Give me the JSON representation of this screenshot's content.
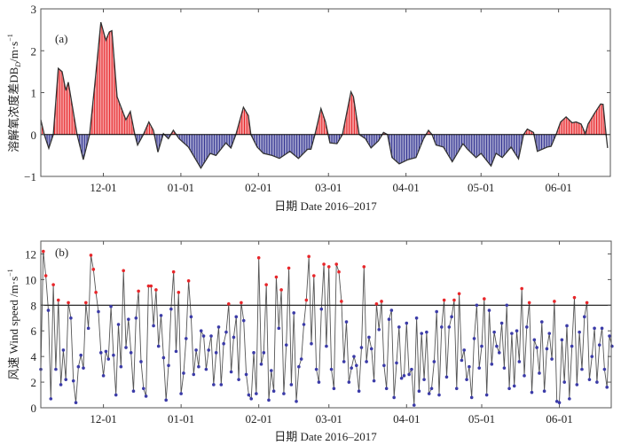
{
  "chart_data": [
    {
      "type": "bar",
      "panel_label": "(a)",
      "title": "",
      "ylabel": {
        "main": "溶解氧浓度差DB",
        "sub": "D",
        "unit": "/m·s",
        "sup": "−1"
      },
      "xlabel": "日期 Date 2016–2017",
      "x_units": "days since 2016-11-06",
      "xlim": [
        0,
        227.7
      ],
      "ylim": [
        -1,
        3
      ],
      "yticks": [
        {
          "v": 3,
          "label": "3"
        },
        {
          "v": 2,
          "label": "2"
        },
        {
          "v": 1,
          "label": "1"
        },
        {
          "v": 0,
          "label": "0"
        },
        {
          "v": -1,
          "label": "−1"
        }
      ],
      "xticks": [
        {
          "day": 25,
          "label": "12-01"
        },
        {
          "day": 56,
          "label": "01-01"
        },
        {
          "day": 87,
          "label": "02-01"
        },
        {
          "day": 115,
          "label": "03-01"
        },
        {
          "day": 146,
          "label": "04-01"
        },
        {
          "day": 176,
          "label": "05-01"
        },
        {
          "day": 207,
          "label": "06-01"
        }
      ],
      "colors": {
        "positive": "#e8262a",
        "negative": "#2e2f8f",
        "line": "#333333"
      },
      "points": [
        [
          0,
          0.35
        ],
        [
          1.4,
          0
        ],
        [
          3.2,
          -0.33
        ],
        [
          5,
          0
        ],
        [
          7,
          1.58
        ],
        [
          8.5,
          1.5
        ],
        [
          10,
          1.05
        ],
        [
          11,
          1.25
        ],
        [
          14.5,
          0
        ],
        [
          17,
          -0.6
        ],
        [
          19.5,
          0
        ],
        [
          21.6,
          1.2
        ],
        [
          24,
          2.68
        ],
        [
          26,
          2.25
        ],
        [
          27.4,
          2.45
        ],
        [
          28.4,
          2.48
        ],
        [
          30.5,
          0.9
        ],
        [
          34,
          0.35
        ],
        [
          35.8,
          0.55
        ],
        [
          37.6,
          0
        ],
        [
          38.7,
          -0.25
        ],
        [
          41,
          0
        ],
        [
          43.2,
          0.3
        ],
        [
          45,
          0.1
        ],
        [
          46.8,
          -0.42
        ],
        [
          49,
          0.02
        ],
        [
          51,
          -0.1
        ],
        [
          53,
          0.1
        ],
        [
          55.3,
          -0.1
        ],
        [
          59,
          -0.3
        ],
        [
          64,
          -0.8
        ],
        [
          67.7,
          -0.45
        ],
        [
          70,
          -0.5
        ],
        [
          74,
          -0.2
        ],
        [
          76,
          -0.32
        ],
        [
          78,
          0
        ],
        [
          81,
          0.65
        ],
        [
          83,
          0.45
        ],
        [
          84,
          0
        ],
        [
          86.5,
          -0.3
        ],
        [
          89,
          -0.45
        ],
        [
          92.5,
          -0.5
        ],
        [
          95.4,
          -0.57
        ],
        [
          99.6,
          -0.4
        ],
        [
          103,
          -0.57
        ],
        [
          106.7,
          -0.35
        ],
        [
          108,
          -0.35
        ],
        [
          109.6,
          0
        ],
        [
          112,
          0.62
        ],
        [
          113.8,
          0.3
        ],
        [
          115.6,
          -0.2
        ],
        [
          118.4,
          -0.22
        ],
        [
          120.6,
          0
        ],
        [
          124,
          1.02
        ],
        [
          125,
          0.9
        ],
        [
          127.3,
          0
        ],
        [
          129.8,
          -0.1
        ],
        [
          132,
          -0.32
        ],
        [
          135,
          -0.15
        ],
        [
          137,
          0.05
        ],
        [
          138.6,
          0
        ],
        [
          140.4,
          -0.55
        ],
        [
          143.3,
          -0.7
        ],
        [
          146.8,
          -0.6
        ],
        [
          150,
          -0.55
        ],
        [
          153,
          -0.1
        ],
        [
          155,
          0.1
        ],
        [
          156.4,
          0
        ],
        [
          158,
          -0.25
        ],
        [
          161,
          -0.3
        ],
        [
          164.5,
          -0.65
        ],
        [
          168.8,
          -0.22
        ],
        [
          170.6,
          -0.35
        ],
        [
          174,
          -0.55
        ],
        [
          176,
          -0.45
        ],
        [
          180,
          -0.75
        ],
        [
          182,
          -0.45
        ],
        [
          184.5,
          -0.55
        ],
        [
          188,
          -0.3
        ],
        [
          191,
          -0.58
        ],
        [
          193,
          0
        ],
        [
          194.5,
          0.13
        ],
        [
          197,
          0.05
        ],
        [
          198.5,
          -0.4
        ],
        [
          202.5,
          -0.3
        ],
        [
          204,
          -0.28
        ],
        [
          206,
          0
        ],
        [
          207.8,
          0.3
        ],
        [
          210,
          0.42
        ],
        [
          212.4,
          0.28
        ],
        [
          214,
          0.3
        ],
        [
          216,
          0.25
        ],
        [
          217.7,
          0.02
        ],
        [
          218.8,
          0.25
        ],
        [
          221.3,
          0.5
        ],
        [
          223.8,
          0.73
        ],
        [
          224.8,
          0.72
        ],
        [
          226,
          0
        ],
        [
          226.6,
          -0.32
        ]
      ]
    },
    {
      "type": "scatter",
      "panel_label": "(b)",
      "title": "",
      "ylabel": {
        "main": "风速 Wind speed /m·s",
        "sup": "−1"
      },
      "xlabel": "日期 Date 2016–2017",
      "x_units": "days since 2016-11-06",
      "xlim": [
        0,
        227.7
      ],
      "ylim": [
        0,
        13
      ],
      "threshold": 8,
      "yticks": [
        {
          "v": 0,
          "label": "0"
        },
        {
          "v": 2,
          "label": "2"
        },
        {
          "v": 4,
          "label": "4"
        },
        {
          "v": 6,
          "label": "6"
        },
        {
          "v": 8,
          "label": "8"
        },
        {
          "v": 10,
          "label": "10"
        },
        {
          "v": 12,
          "label": "12"
        }
      ],
      "xticks": [
        {
          "day": 25,
          "label": "12-01"
        },
        {
          "day": 56,
          "label": "01-01"
        },
        {
          "day": 87,
          "label": "02-01"
        },
        {
          "day": 115,
          "label": "03-01"
        },
        {
          "day": 146,
          "label": "04-01"
        },
        {
          "day": 176,
          "label": "05-01"
        },
        {
          "day": 207,
          "label": "06-01"
        }
      ],
      "colors": {
        "above": "#e8262a",
        "below": "#3b3ba8",
        "line": "#2a2a2a"
      },
      "daily_values": [
        3,
        12.2,
        10.3,
        7.6,
        0.7,
        9.6,
        3,
        8.4,
        1.8,
        4.5,
        2.2,
        8.2,
        7,
        2.1,
        0.4,
        3.2,
        4.1,
        3.1,
        8.2,
        6.2,
        11.9,
        10.8,
        9,
        7.5,
        4.3,
        2.5,
        4.4,
        3.8,
        7.9,
        4.1,
        1,
        6.5,
        3.2,
        10.7,
        4.7,
        6.9,
        4.3,
        1.3,
        7,
        9.1,
        3.6,
        1.5,
        0.9,
        9.5,
        9.5,
        6.4,
        9.2,
        4.8,
        7.2,
        3.9,
        0.6,
        3.3,
        7.7,
        10.6,
        4.4,
        9,
        1.1,
        2.7,
        5.4,
        9.9,
        7.1,
        2.6,
        4.5,
        3.2,
        6,
        5.6,
        3,
        4.5,
        5.6,
        1.8,
        4.3,
        6.3,
        1.8,
        5,
        5.9,
        8.1,
        2.8,
        5.5,
        7.1,
        2.2,
        8.2,
        6.8,
        2.6,
        1,
        0.7,
        4.3,
        1.1,
        11.7,
        3.4,
        4.3,
        9.6,
        0.6,
        2.9,
        1.3,
        10.2,
        6.2,
        9.2,
        1.1,
        4.9,
        10.9,
        1.8,
        7.4,
        0.5,
        3.2,
        3.8,
        6.5,
        8.4,
        11.8,
        5,
        10.3,
        3,
        2,
        7.7,
        11.2,
        4.8,
        11,
        3,
        1.5,
        11.2,
        10.6,
        8.3,
        3.6,
        6.7,
        2,
        3.1,
        4,
        3.3,
        1.3,
        4.7,
        11,
        3.6,
        5.5,
        4.6,
        2.1,
        8.1,
        6.1,
        8.3,
        3.3,
        1.5,
        6.9,
        7.6,
        0.8,
        3.5,
        6.3,
        2.3,
        2.5,
        6.6,
        2.6,
        3,
        0.2,
        7,
        1.3,
        5.8,
        2.2,
        5.9,
        1.1,
        1.5,
        3.6,
        7.5,
        1,
        6.3,
        8.4,
        2.4,
        6.3,
        7.1,
        8.4,
        1.5,
        8.9,
        3.7,
        4.5,
        2.2,
        3.2,
        0.8,
        5.4,
        8,
        3.1,
        4.8,
        8.5,
        1,
        7.6,
        3.4,
        5.9,
        4.8,
        4.3,
        6.6,
        3.1,
        8,
        1.5,
        5.8,
        1.7,
        6,
        3.6,
        9.3,
        2.5,
        6.3,
        8.2,
        1.2,
        5.3,
        4.7,
        2.7,
        6.7,
        1.3,
        4.6,
        5.8,
        3.8,
        8.3,
        0.5,
        0.4,
        5.3,
        2,
        6.4,
        0.7,
        4.8,
        8.6,
        1.8,
        5.9,
        3,
        7.1,
        8.2,
        2.2,
        4,
        6.2,
        2,
        4.9,
        6.2,
        3,
        1.6,
        5.6,
        4.8
      ]
    }
  ]
}
